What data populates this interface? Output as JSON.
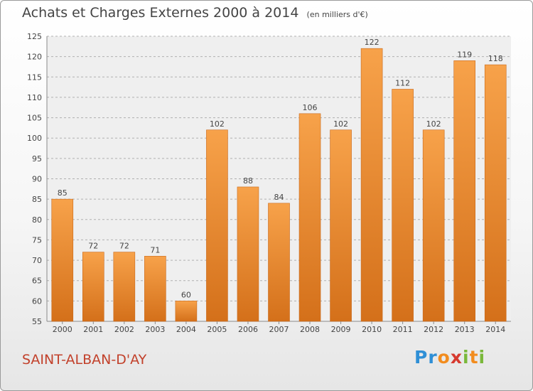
{
  "header": {
    "title": "Achats et Charges Externes 2000 à 2014",
    "subtitle": "(en milliers d'€)"
  },
  "footer": {
    "commune": "SAINT-ALBAN-D'AY",
    "logo_letters": [
      "P",
      "r",
      "o",
      "x",
      "i",
      "t",
      "i"
    ],
    "logo_colors": [
      "#2f8fd6",
      "#2f8fd6",
      "#f28c1e",
      "#d63a2f",
      "#7ab83a",
      "#f28c1e",
      "#7ab83a"
    ]
  },
  "chart_data": {
    "type": "bar",
    "title": "Achats et Charges Externes 2000 à 2014",
    "subtitle": "(en milliers d'€)",
    "categories": [
      "2000",
      "2001",
      "2002",
      "2003",
      "2004",
      "2005",
      "2006",
      "2007",
      "2008",
      "2009",
      "2010",
      "2011",
      "2012",
      "2013",
      "2014"
    ],
    "values": [
      85,
      72,
      72,
      71,
      60,
      102,
      88,
      84,
      106,
      102,
      122,
      112,
      102,
      119,
      118
    ],
    "ylim": [
      55,
      125
    ],
    "yticks": [
      55,
      60,
      65,
      70,
      75,
      80,
      85,
      90,
      95,
      100,
      105,
      110,
      115,
      120,
      125
    ],
    "grid": true,
    "colors": {
      "bar_light": "#f7a24a",
      "bar_dark": "#d4701a",
      "grid": "#b0b0b0",
      "text": "#444444"
    }
  }
}
